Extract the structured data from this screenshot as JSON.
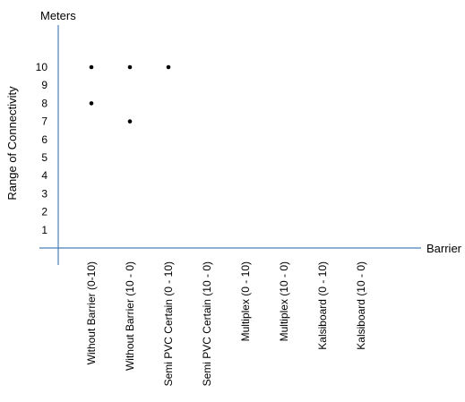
{
  "colors": {
    "axis": "#4a7ebb",
    "point": "#000000",
    "text": "#000000"
  },
  "chart_data": {
    "type": "scatter",
    "ylabel": "Range of Connectivity",
    "yunit_label": "Meters",
    "xlabel": "Barrier",
    "categories": [
      "Without Barrier (0-10)",
      "Without Barrier (10 - 0)",
      "Semi PVC Certain (0 - 10)",
      "Semi PVC Certain (10 - 0)",
      "Multiplex (0 - 10)",
      "Multiplex (10 - 0)",
      "Kalsiboard (0 - 10)",
      "Kalsiboard (10 - 0)"
    ],
    "yticks": [
      1,
      2,
      3,
      4,
      5,
      6,
      7,
      8,
      9,
      10
    ],
    "ylim": [
      0,
      10
    ],
    "grid": false,
    "points": [
      {
        "category": "Without Barrier (0-10)",
        "y": 10
      },
      {
        "category": "Without Barrier (0-10)",
        "y": 8
      },
      {
        "category": "Without Barrier (10 - 0)",
        "y": 10
      },
      {
        "category": "Without Barrier (10 - 0)",
        "y": 7
      },
      {
        "category": "Semi PVC Certain (0 - 10)",
        "y": 10
      }
    ]
  }
}
